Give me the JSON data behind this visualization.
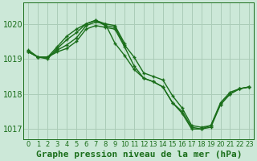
{
  "title": "Graphe pression niveau de la mer (hPa)",
  "bg_color": "#cce8d8",
  "grid_color": "#aaccb8",
  "line_color": "#1a6e1a",
  "ylim": [
    1016.7,
    1020.6
  ],
  "xlim": [
    -0.5,
    23.5
  ],
  "yticks": [
    1017,
    1018,
    1019,
    1020
  ],
  "xticks": [
    0,
    1,
    2,
    3,
    4,
    5,
    6,
    7,
    8,
    9,
    10,
    11,
    12,
    13,
    14,
    15,
    16,
    17,
    18,
    19,
    20,
    21,
    22,
    23
  ],
  "series": [
    {
      "x": [
        0,
        1,
        2,
        3,
        4,
        5,
        6,
        7,
        8,
        9,
        10,
        11,
        12,
        13,
        14,
        15,
        16,
        17,
        18,
        19,
        20,
        21,
        22,
        23
      ],
      "y": [
        1019.2,
        1019.05,
        1019.0,
        1019.3,
        1019.55,
        1019.75,
        1020.0,
        1020.1,
        1019.95,
        1019.9,
        1019.4,
        1019.05,
        1018.6,
        1018.5,
        1018.4,
        1017.95,
        1017.6,
        1017.1,
        1017.05,
        1017.1,
        1017.75,
        1018.05,
        1018.15,
        1018.2
      ]
    },
    {
      "x": [
        0,
        1,
        2,
        3,
        4,
        5,
        6,
        7,
        8,
        9,
        10,
        11,
        12,
        13,
        14,
        15,
        16,
        17,
        18,
        19,
        20,
        21,
        22,
        23
      ],
      "y": [
        1019.2,
        1019.05,
        1019.05,
        1019.25,
        1019.4,
        1019.6,
        1019.95,
        1020.05,
        1020.0,
        1019.45,
        1019.1,
        1018.7,
        1018.45,
        1018.35,
        1018.2,
        1017.75,
        1017.5,
        1017.05,
        1017.0,
        1017.1,
        1017.7,
        1018.0,
        1018.15,
        1018.2
      ]
    },
    {
      "x": [
        0,
        1,
        2,
        3,
        4,
        5,
        6,
        7,
        8,
        9,
        10
      ],
      "y": [
        1019.2,
        1019.05,
        1019.05,
        1019.35,
        1019.65,
        1019.85,
        1020.0,
        1020.1,
        1020.0,
        1019.95,
        1019.45
      ]
    },
    {
      "x": [
        0,
        1,
        2,
        3,
        4,
        5,
        6,
        7,
        8,
        9,
        10,
        11,
        12,
        13,
        14,
        15,
        16,
        17,
        18,
        19,
        20,
        21,
        22,
        23
      ],
      "y": [
        1019.25,
        1019.05,
        1019.05,
        1019.2,
        1019.3,
        1019.5,
        1019.85,
        1019.95,
        1019.9,
        1019.85,
        1019.35,
        1018.8,
        1018.45,
        1018.35,
        1018.2,
        1017.75,
        1017.45,
        1017.0,
        1017.0,
        1017.05,
        1017.7,
        1018.0,
        1018.15,
        1018.2
      ]
    }
  ],
  "xlabel_fontsize": 8,
  "xtick_fontsize": 6,
  "ytick_fontsize": 7,
  "linewidth": 1.0,
  "markersize": 3.5,
  "marker": "+"
}
